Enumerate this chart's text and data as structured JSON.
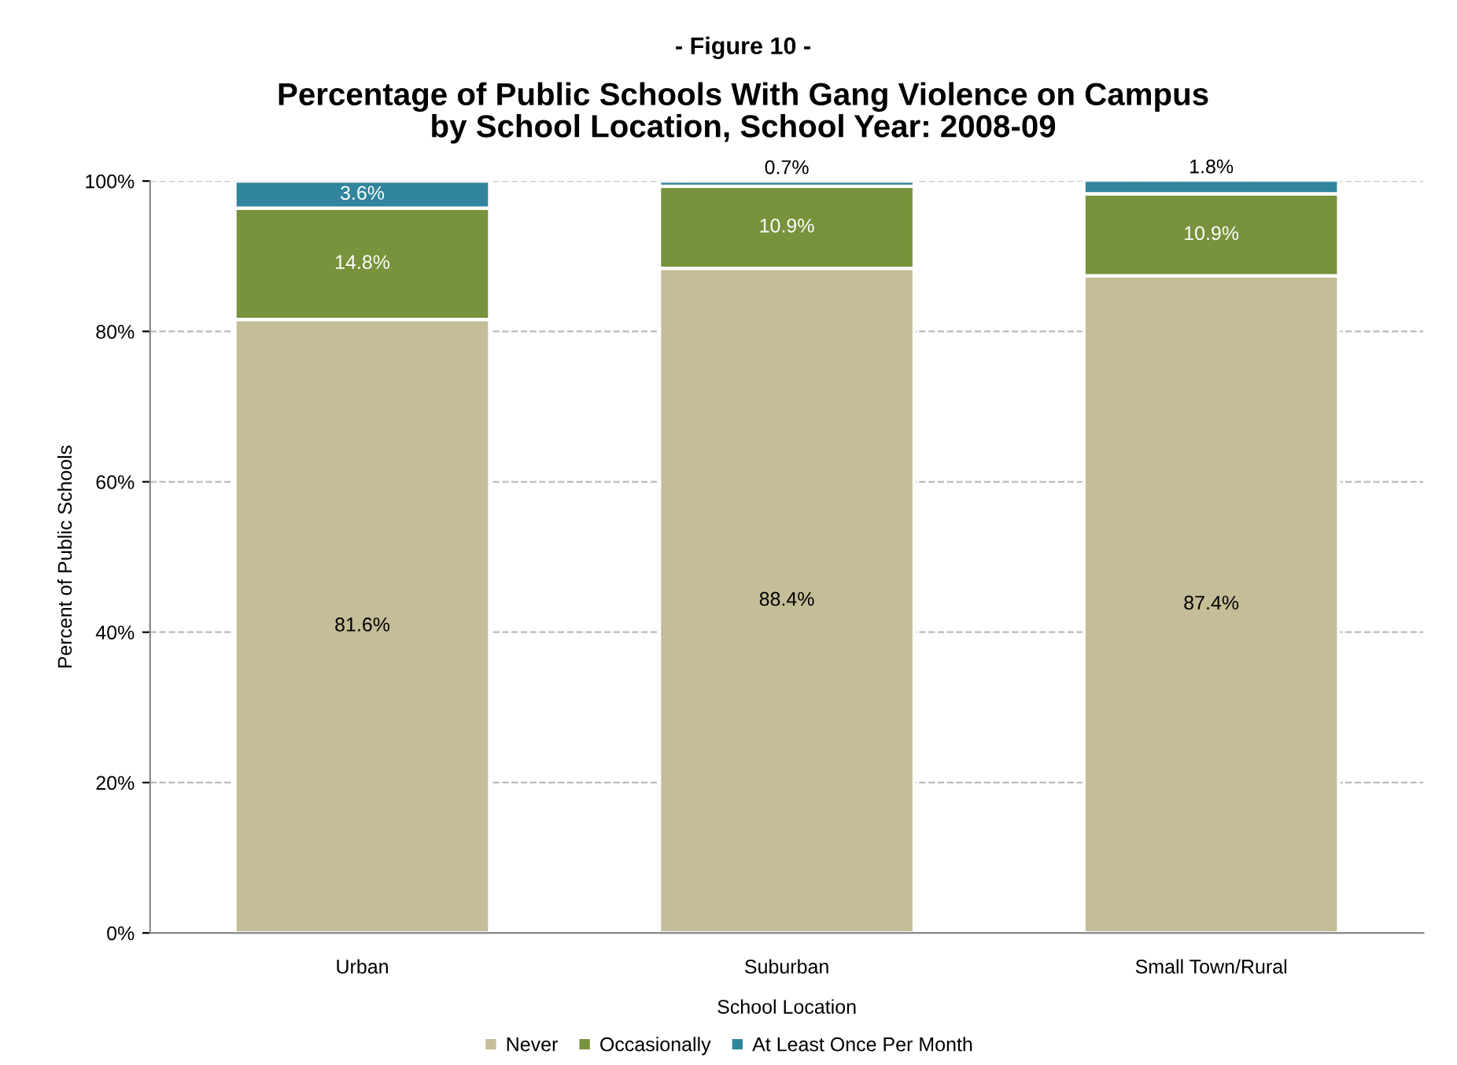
{
  "chart_data": {
    "type": "bar",
    "stacked": true,
    "title": "Percentage of Public Schools With Gang Violence on Campus\nby School Location, School Year: 2008-09",
    "annotations": [
      "- Figure 10 -"
    ],
    "xlabel": "School Location",
    "ylabel": "Percent of Public Schools",
    "categories": [
      "Urban",
      "Suburban",
      "Small Town/Rural"
    ],
    "series": [
      {
        "name": "Never",
        "color": "#c4bd97",
        "values": [
          81.6,
          88.4,
          87.4
        ],
        "value_labels": [
          "81.6%",
          "88.4%",
          "87.4%"
        ]
      },
      {
        "name": "Occasionally",
        "color": "#77933c",
        "values": [
          14.8,
          10.9,
          10.9
        ],
        "value_labels": [
          "14.8%",
          "10.9%",
          "10.9%"
        ]
      },
      {
        "name": "At Least Once Per Month",
        "color": "#31859c",
        "values": [
          3.6,
          0.7,
          1.8
        ],
        "value_labels": [
          "3.6%",
          "0.7%",
          "1.8%"
        ]
      }
    ],
    "ylim": [
      0,
      100
    ],
    "yticks": [
      {
        "value": 0,
        "label": "0%"
      },
      {
        "value": 20,
        "label": "20%"
      },
      {
        "value": 40,
        "label": "40%"
      },
      {
        "value": 60,
        "label": "60%"
      },
      {
        "value": 80,
        "label": "80%"
      },
      {
        "value": 100,
        "label": "100%"
      }
    ],
    "grid": "y",
    "legend": "bottom"
  }
}
